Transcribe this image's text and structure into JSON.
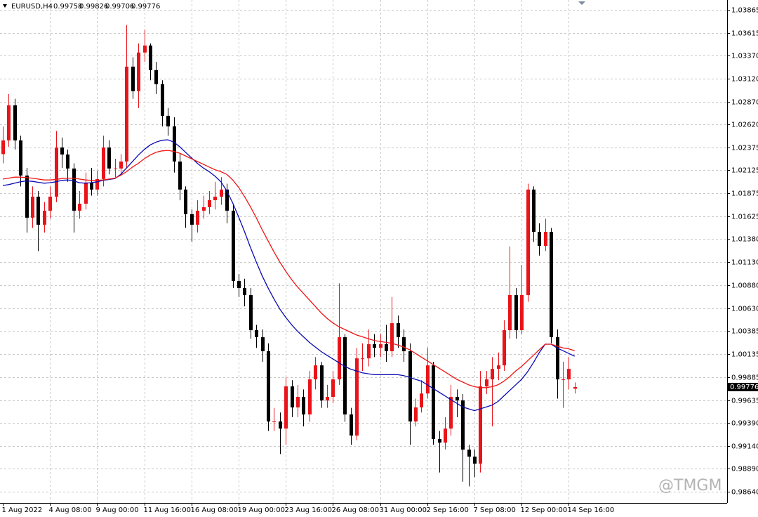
{
  "chart_data": {
    "type": "candlestick",
    "symbol": "EURUSD,H4",
    "watermark": "@TMGM",
    "up_color": "#e8141a",
    "down_color": "#000000",
    "grid": true,
    "ylim": [
      0.9852,
      1.0397
    ],
    "yticks": [
      1.03865,
      1.03615,
      {
        "value": 1.0337,
        "label": "1.03370"
      },
      {
        "value": 1.0312,
        "label": "1.03120"
      },
      {
        "value": 1.0287,
        "label": "1.02870"
      },
      {
        "value": 1.0262,
        "label": "1.02620"
      },
      1.02375,
      1.02125,
      1.01875,
      1.01625,
      {
        "value": 1.0138,
        "label": "1.01380"
      },
      {
        "value": 1.0113,
        "label": "1.01130"
      },
      {
        "value": 1.0088,
        "label": "1.00880"
      },
      {
        "value": 1.0063,
        "label": "1.00630"
      },
      1.00385,
      1.00135,
      0.99885,
      0.99635,
      {
        "value": 0.9939,
        "label": "0.99390"
      },
      {
        "value": 0.9914,
        "label": "0.99140"
      },
      {
        "value": 0.9889,
        "label": "0.98890"
      },
      {
        "value": 0.9864,
        "label": "0.98640"
      }
    ],
    "x": [
      "1 Aug 2022",
      null,
      null,
      null,
      null,
      null,
      null,
      null,
      "4 Aug 08:00",
      null,
      null,
      null,
      null,
      null,
      null,
      null,
      "9 Aug 00:00",
      null,
      null,
      null,
      null,
      null,
      null,
      null,
      "11 Aug 16:00",
      null,
      null,
      null,
      null,
      null,
      null,
      null,
      "16 Aug 08:00",
      null,
      null,
      null,
      null,
      null,
      null,
      null,
      "19 Aug 00:00",
      null,
      null,
      null,
      null,
      null,
      null,
      null,
      "23 Aug 16:00",
      null,
      null,
      null,
      null,
      null,
      null,
      null,
      "26 Aug 08:00",
      null,
      null,
      null,
      null,
      null,
      null,
      null,
      "31 Aug 00:00",
      null,
      null,
      null,
      null,
      null,
      null,
      null,
      "2 Sep 16:00",
      null,
      null,
      null,
      null,
      null,
      null,
      null,
      "7 Sep 08:00",
      null,
      null,
      null,
      null,
      null,
      null,
      null,
      "12 Sep 00:00",
      null,
      null,
      null,
      null,
      null,
      null,
      null,
      "14 Sep 16:00",
      null
    ],
    "open": [
      1.023,
      1.02449,
      1.02829,
      1.02449,
      1.02068,
      1.01611,
      1.01839,
      1.01535,
      1.01687,
      1.01839,
      1.02372,
      1.02296,
      1.02144,
      1.01687,
      1.01763,
      1.01992,
      1.01916,
      1.0203,
      1.02372,
      1.02144,
      1.02144,
      1.0222,
      1.03248,
      1.02982,
      1.03401,
      1.03477,
      1.0321,
      1.03058,
      1.02715,
      1.02601,
      1.0222,
      1.01916,
      1.01649,
      1.01535,
      1.01687,
      1.01725,
      1.01801,
      1.01839,
      1.01916,
      1.01687,
      1.00925,
      1.00849,
      1.00773,
      1.00392,
      1.00316,
      1.00164,
      0.99403,
      0.99403,
      0.99326,
      0.99783,
      0.99555,
      0.99669,
      0.99479,
      0.99859,
      1.00011,
      0.99631,
      0.99669,
      0.99859,
      1.00316,
      0.99479,
      0.9925,
      1.00087,
      1.00087,
      1.0024,
      1.00202,
      1.0024,
      1.00164,
      1.00468,
      1.00316,
      1.00164,
      0.99403,
      0.99555,
      0.99706,
      1.00011,
      0.99212,
      0.99174,
      0.99326,
      0.99669,
      0.99631,
      0.99098,
      0.99022,
      0.98946,
      0.99783,
      0.99859,
      0.99973,
      1.00011,
      1.00392,
      1.00773,
      1.00392,
      1.00773,
      1.01916,
      1.01458,
      1.01306,
      1.01458,
      1.00316,
      0.99859,
      0.99859,
      0.99758
    ],
    "high": [
      1.026,
      1.0295,
      1.029,
      1.025,
      1.0215,
      1.0195,
      1.019,
      1.0178,
      1.0195,
      1.0255,
      1.0248,
      1.0235,
      1.022,
      1.019,
      1.021,
      1.0215,
      1.0212,
      1.025,
      1.0245,
      1.0225,
      1.023,
      1.037,
      1.0335,
      1.035,
      1.0365,
      1.035,
      1.033,
      1.031,
      1.028,
      1.027,
      1.023,
      1.0195,
      1.017,
      1.018,
      1.0185,
      1.019,
      1.02,
      1.0205,
      1.0198,
      1.0175,
      1.01,
      1.0095,
      1.0085,
      1.0045,
      1.004,
      1.0025,
      0.9955,
      0.995,
      0.9988,
      0.9985,
      0.998,
      0.9975,
      0.9995,
      1.001,
      1.0005,
      0.998,
      0.9995,
      1.009,
      1.0035,
      0.9955,
      1.002,
      1.0025,
      1.004,
      1.0035,
      1.0035,
      1.0045,
      1.0075,
      1.0055,
      1.004,
      1.0025,
      0.9965,
      0.9985,
      1.002,
      1.0005,
      0.993,
      0.9945,
      0.998,
      0.9975,
      0.997,
      0.9915,
      0.991,
      0.9995,
      0.9995,
      1.001,
      1.0015,
      1.005,
      1.013,
      1.0085,
      1.011,
      1.0198,
      1.0195,
      1.0155,
      1.016,
      1.015,
      1.004,
      1.0005,
      1.001,
      0.99826
    ],
    "low": [
      1.022,
      1.0238,
      1.0235,
      1.0195,
      1.0145,
      1.015,
      1.0125,
      1.0145,
      1.016,
      1.0178,
      1.0215,
      1.02,
      1.0145,
      1.016,
      1.017,
      1.0185,
      1.0185,
      1.0195,
      1.0208,
      1.0205,
      1.0208,
      1.0215,
      1.029,
      1.028,
      1.033,
      1.031,
      1.0295,
      1.026,
      1.025,
      1.021,
      1.018,
      1.015,
      1.0135,
      1.0145,
      1.016,
      1.0165,
      1.017,
      1.0175,
      1.0155,
      1.0085,
      1.0075,
      1.0065,
      1.003,
      1.002,
      1.0005,
      0.993,
      0.993,
      0.9905,
      0.9915,
      0.9945,
      0.9945,
      0.9935,
      0.994,
      0.9975,
      0.9955,
      0.9955,
      0.996,
      0.998,
      0.994,
      0.9915,
      0.992,
      0.9995,
      1.0,
      1.001,
      1.001,
      1.0005,
      1.001,
      1.002,
      1.0005,
      0.9915,
      0.9935,
      0.995,
      0.9965,
      0.9915,
      0.9885,
      0.991,
      0.9925,
      0.9945,
      0.9875,
      0.987,
      0.988,
      0.9885,
      0.997,
      0.9935,
      0.9985,
      0.9995,
      1.003,
      1.003,
      1.0035,
      1.007,
      1.0135,
      1.012,
      1.0125,
      1.0025,
      0.9965,
      0.9955,
      0.9975,
      0.99706
    ],
    "close": [
      1.02449,
      1.02829,
      1.02449,
      1.02068,
      1.01611,
      1.01839,
      1.01535,
      1.01687,
      1.01839,
      1.02372,
      1.02296,
      1.02144,
      1.01687,
      1.01763,
      1.01992,
      1.01916,
      1.0203,
      1.02372,
      1.02144,
      1.02144,
      1.0222,
      1.03248,
      1.02982,
      1.03401,
      1.03477,
      1.0321,
      1.03058,
      1.02715,
      1.02601,
      1.0222,
      1.01916,
      1.01649,
      1.01535,
      1.01687,
      1.01725,
      1.01801,
      1.01839,
      1.01916,
      1.01687,
      1.00925,
      1.00849,
      1.00773,
      1.00392,
      1.00316,
      1.00164,
      0.99403,
      0.99403,
      0.99326,
      0.99783,
      0.99555,
      0.99669,
      0.99479,
      0.99859,
      1.00011,
      0.99631,
      0.99669,
      0.99859,
      1.00316,
      0.99479,
      0.9925,
      1.00087,
      1.00087,
      1.0024,
      1.00202,
      1.0024,
      1.00164,
      1.00468,
      1.00316,
      1.00164,
      0.99403,
      0.99555,
      0.99706,
      1.00011,
      0.99212,
      0.99174,
      0.99326,
      0.99669,
      0.99631,
      0.99098,
      0.99022,
      0.98946,
      0.99783,
      0.99859,
      0.99973,
      1.00011,
      1.00392,
      1.00773,
      1.00392,
      1.00773,
      1.01916,
      1.01458,
      1.01306,
      1.01458,
      1.00316,
      0.99859,
      0.99859,
      0.99973,
      0.99776
    ],
    "lines": [
      {
        "color": "#0a0ab4",
        "values": [
          1.0196,
          1.0197,
          1.01985,
          1.02,
          1.0201,
          1.02005,
          1.01995,
          1.01985,
          1.0199,
          1.02,
          1.02015,
          1.0202,
          1.0201,
          1.0199,
          1.01985,
          1.0199,
          1.02,
          1.02015,
          1.02025,
          1.02035,
          1.0208,
          1.0215,
          1.0222,
          1.0229,
          1.0235,
          1.024,
          1.0243,
          1.0245,
          1.02455,
          1.0243,
          1.0238,
          1.0232,
          1.0226,
          1.022,
          1.0215,
          1.0211,
          1.0206,
          1.02,
          1.019,
          1.0177,
          1.0162,
          1.0146,
          1.0129,
          1.0113,
          1.0098,
          1.0085,
          1.0073,
          1.0062,
          1.0053,
          1.0045,
          1.0038,
          1.0032,
          1.0026,
          1.0021,
          1.0016,
          1.0012,
          1.0008,
          1.0004,
          1.0,
          0.9997,
          0.9995,
          0.9993,
          0.9992,
          0.9991,
          0.9991,
          0.9991,
          0.9991,
          0.9991,
          0.999,
          0.9988,
          0.9986,
          0.9984,
          0.998,
          0.9976,
          0.9972,
          0.9968,
          0.9964,
          0.996,
          0.9956,
          0.9954,
          0.9952,
          0.9954,
          0.9956,
          0.9958,
          0.9962,
          0.9968,
          0.9974,
          0.998,
          0.9986,
          0.9994,
          1.0004,
          1.0015,
          1.0024,
          1.0024,
          1.002,
          1.0017,
          1.0014,
          1.0011
        ]
      },
      {
        "color": "#f01414",
        "values": [
          1.0203,
          1.0204,
          1.0205,
          1.0205,
          1.02045,
          1.0204,
          1.0203,
          1.0202,
          1.0202,
          1.02025,
          1.02035,
          1.0204,
          1.0204,
          1.0203,
          1.0202,
          1.02015,
          1.02015,
          1.0202,
          1.0203,
          1.0204,
          1.0207,
          1.0211,
          1.0216,
          1.022,
          1.0225,
          1.0229,
          1.0232,
          1.02335,
          1.0234,
          1.0233,
          1.0231,
          1.0228,
          1.0225,
          1.0222,
          1.0219,
          1.0216,
          1.0213,
          1.0211,
          1.0208,
          1.0202,
          1.0194,
          1.0184,
          1.0173,
          1.0161,
          1.0148,
          1.0136,
          1.0124,
          1.0113,
          1.0103,
          1.0094,
          1.0086,
          1.0079,
          1.0072,
          1.0065,
          1.0058,
          1.0052,
          1.0047,
          1.0043,
          1.004,
          1.0037,
          1.0034,
          1.0032,
          1.003,
          1.0028,
          1.0027,
          1.0026,
          1.0025,
          1.0023,
          1.0021,
          1.0018,
          1.0014,
          1.001,
          1.0006,
          1.0002,
          0.9998,
          0.9994,
          0.999,
          0.9986,
          0.9983,
          0.998,
          0.9978,
          0.9977,
          0.9977,
          0.9978,
          0.998,
          0.9984,
          0.9989,
          0.9995,
          1.0,
          1.0006,
          1.0012,
          1.0018,
          1.0024,
          1.0024,
          1.0022,
          1.002,
          1.0019,
          1.0017
        ]
      }
    ]
  }
}
